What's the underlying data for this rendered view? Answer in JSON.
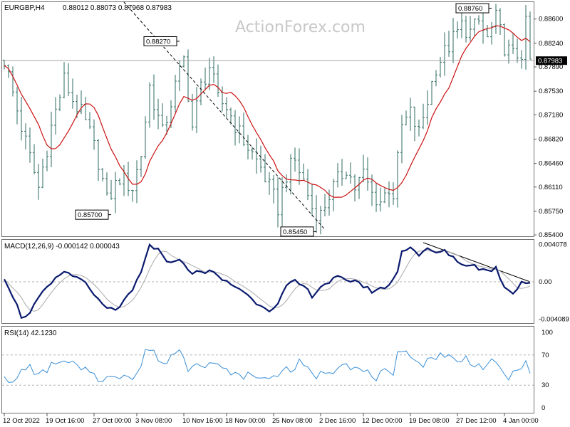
{
  "chart_data": {
    "type": "candlestick",
    "symbol_header": "EURGBP,H4",
    "ohlc_header": "0.88012 0.88073 0.87968 0.87983",
    "watermark": "ActionForex.com",
    "current_price": "0.87983",
    "price_axis": {
      "ticks": [
        "0.88600",
        "0.88240",
        "0.87890",
        "0.87530",
        "0.87180",
        "0.86820",
        "0.86460",
        "0.86110",
        "0.85750",
        "0.85400"
      ],
      "ylim": [
        0.8538,
        0.8885
      ]
    },
    "time_axis_labels": [
      "12 Oct 2022",
      "19 Oct 16:00",
      "27 Oct 00:00",
      "3 Nov 08:00",
      "10 Nov 16:00",
      "18 Nov 00:00",
      "25 Nov 08:00",
      "2 Dec 16:00",
      "12 Dec 00:00",
      "19 Dec 08:00",
      "27 Dec 12:00",
      "4 Jan 00:00"
    ],
    "annotations": [
      {
        "label": "0.88270",
        "price": 0.8827,
        "bar": 41,
        "placement": "left"
      },
      {
        "label": "0.88760",
        "price": 0.8876,
        "bar": 114,
        "placement": "left"
      },
      {
        "label": "0.85700",
        "price": 0.857,
        "bar": 25,
        "placement": "left"
      },
      {
        "label": "0.85450",
        "price": 0.8545,
        "bar": 73,
        "placement": "left"
      }
    ],
    "close_path": [
      [
        0,
        0.88
      ],
      [
        4,
        0.87
      ],
      [
        8,
        0.861
      ],
      [
        11,
        0.87
      ],
      [
        14,
        0.877
      ],
      [
        16,
        0.874
      ],
      [
        18,
        0.872
      ],
      [
        20,
        0.869
      ],
      [
        22,
        0.865
      ],
      [
        24,
        0.859
      ],
      [
        27,
        0.8625
      ],
      [
        30,
        0.861
      ],
      [
        32,
        0.866
      ],
      [
        34,
        0.876
      ],
      [
        37,
        0.869
      ],
      [
        40,
        0.876
      ],
      [
        42,
        0.88
      ],
      [
        44,
        0.87
      ],
      [
        46,
        0.876
      ],
      [
        48,
        0.879
      ],
      [
        50,
        0.874
      ],
      [
        52,
        0.873
      ],
      [
        55,
        0.869
      ],
      [
        58,
        0.866
      ],
      [
        60,
        0.864
      ],
      [
        62,
        0.861
      ],
      [
        64,
        0.858
      ],
      [
        66,
        0.863
      ],
      [
        68,
        0.865
      ],
      [
        70,
        0.862
      ],
      [
        72,
        0.858
      ],
      [
        74,
        0.857
      ],
      [
        76,
        0.86
      ],
      [
        78,
        0.862
      ],
      [
        80,
        0.864
      ],
      [
        82,
        0.861
      ],
      [
        84,
        0.863
      ],
      [
        86,
        0.86
      ],
      [
        88,
        0.859
      ],
      [
        90,
        0.861
      ],
      [
        91,
        0.86
      ],
      [
        93,
        0.87
      ],
      [
        95,
        0.872
      ],
      [
        97,
        0.869
      ],
      [
        99,
        0.874
      ],
      [
        101,
        0.879
      ],
      [
        103,
        0.881
      ],
      [
        105,
        0.883
      ],
      [
        107,
        0.885
      ],
      [
        109,
        0.884
      ],
      [
        111,
        0.8855
      ],
      [
        113,
        0.883
      ],
      [
        115,
        0.886
      ],
      [
        117,
        0.882
      ],
      [
        119,
        0.8805
      ],
      [
        121,
        0.881
      ],
      [
        122,
        0.885
      ],
      [
        123,
        0.8798
      ]
    ],
    "trendlines": [
      {
        "pane": "price",
        "from": [
          28,
          0.8885
        ],
        "to": [
          75,
          0.8548
        ],
        "style": "dashed"
      },
      {
        "pane": "macd",
        "from": [
          98,
          0.0043
        ],
        "to": [
          123,
          0.0
        ],
        "style": "solid"
      }
    ],
    "indicators": [
      {
        "name": "MACD(12,26,9)",
        "label": "MACD(12,26,9) -0.000142 0.000043",
        "levels": [
          "0.004078",
          "0.00",
          "-0.004089"
        ],
        "ylim": [
          -0.0046,
          0.0046
        ],
        "macd_path": [
          [
            0,
            0.0005
          ],
          [
            2,
            -0.0015
          ],
          [
            4,
            -0.0038
          ],
          [
            6,
            -0.0035
          ],
          [
            8,
            -0.0018
          ],
          [
            11,
            -0.0002
          ],
          [
            14,
            0.0012
          ],
          [
            16,
            0.0006
          ],
          [
            18,
            0.0005
          ],
          [
            20,
            -0.001
          ],
          [
            22,
            -0.002
          ],
          [
            24,
            -0.003
          ],
          [
            26,
            -0.003
          ],
          [
            28,
            -0.0022
          ],
          [
            30,
            -0.001
          ],
          [
            32,
            0.001
          ],
          [
            34,
            0.004
          ],
          [
            36,
            0.0035
          ],
          [
            38,
            0.002
          ],
          [
            40,
            0.0025
          ],
          [
            42,
            0.002
          ],
          [
            44,
            0.001
          ],
          [
            46,
            0.001
          ],
          [
            48,
            0.0013
          ],
          [
            50,
            0.0005
          ],
          [
            52,
            0.0
          ],
          [
            54,
            -0.0005
          ],
          [
            56,
            -0.001
          ],
          [
            58,
            -0.002
          ],
          [
            60,
            -0.0025
          ],
          [
            62,
            -0.003
          ],
          [
            64,
            -0.0025
          ],
          [
            66,
            -0.0005
          ],
          [
            68,
            0.0
          ],
          [
            70,
            -0.0005
          ],
          [
            72,
            -0.0015
          ],
          [
            74,
            -0.0005
          ],
          [
            76,
            0.0
          ],
          [
            78,
            0.0005
          ],
          [
            80,
            0.0
          ],
          [
            82,
            0.0003
          ],
          [
            84,
            -0.0005
          ],
          [
            86,
            -0.001
          ],
          [
            88,
            -0.0008
          ],
          [
            90,
            -0.0003
          ],
          [
            92,
            0.001
          ],
          [
            93,
            0.0035
          ],
          [
            95,
            0.0038
          ],
          [
            97,
            0.003
          ],
          [
            99,
            0.0035
          ],
          [
            101,
            0.0032
          ],
          [
            103,
            0.0033
          ],
          [
            105,
            0.0028
          ],
          [
            107,
            0.0018
          ],
          [
            109,
            0.002
          ],
          [
            111,
            0.0015
          ],
          [
            113,
            0.0012
          ],
          [
            115,
            0.0015
          ],
          [
            117,
            -0.0005
          ],
          [
            119,
            -0.0012
          ],
          [
            121,
            0.0
          ],
          [
            123,
            -0.0001
          ]
        ]
      },
      {
        "name": "RSI(14)",
        "label": "RSI(14) 42.1230",
        "levels": [
          "100",
          "70",
          "30",
          "0"
        ],
        "ylim": [
          0,
          100
        ],
        "rsi_path": [
          [
            0,
            45
          ],
          [
            2,
            30
          ],
          [
            4,
            48
          ],
          [
            6,
            55
          ],
          [
            8,
            42
          ],
          [
            10,
            50
          ],
          [
            12,
            62
          ],
          [
            14,
            58
          ],
          [
            16,
            60
          ],
          [
            18,
            48
          ],
          [
            20,
            50
          ],
          [
            22,
            38
          ],
          [
            24,
            40
          ],
          [
            26,
            38
          ],
          [
            28,
            45
          ],
          [
            30,
            42
          ],
          [
            32,
            55
          ],
          [
            33,
            78
          ],
          [
            35,
            74
          ],
          [
            37,
            55
          ],
          [
            39,
            70
          ],
          [
            41,
            77
          ],
          [
            43,
            52
          ],
          [
            45,
            62
          ],
          [
            47,
            58
          ],
          [
            49,
            60
          ],
          [
            51,
            50
          ],
          [
            53,
            48
          ],
          [
            55,
            40
          ],
          [
            57,
            45
          ],
          [
            59,
            38
          ],
          [
            61,
            42
          ],
          [
            63,
            40
          ],
          [
            65,
            52
          ],
          [
            67,
            48
          ],
          [
            69,
            60
          ],
          [
            71,
            50
          ],
          [
            73,
            42
          ],
          [
            75,
            48
          ],
          [
            77,
            50
          ],
          [
            79,
            62
          ],
          [
            81,
            55
          ],
          [
            83,
            50
          ],
          [
            85,
            46
          ],
          [
            87,
            40
          ],
          [
            89,
            48
          ],
          [
            91,
            38
          ],
          [
            92,
            70
          ],
          [
            94,
            80
          ],
          [
            96,
            62
          ],
          [
            98,
            58
          ],
          [
            100,
            65
          ],
          [
            102,
            72
          ],
          [
            104,
            68
          ],
          [
            106,
            60
          ],
          [
            108,
            66
          ],
          [
            110,
            58
          ],
          [
            112,
            54
          ],
          [
            114,
            60
          ],
          [
            116,
            52
          ],
          [
            118,
            40
          ],
          [
            120,
            48
          ],
          [
            122,
            65
          ],
          [
            123,
            42
          ]
        ]
      }
    ]
  },
  "colors": {
    "candle": "#2e6b62",
    "ma": "#cc1111",
    "macd": "#0a1a6e",
    "signal": "#aaaaaa",
    "rsi": "#3a8fd6",
    "grid_dash": "#b0b0b0",
    "trendline": "#000000",
    "border": "#707070"
  }
}
